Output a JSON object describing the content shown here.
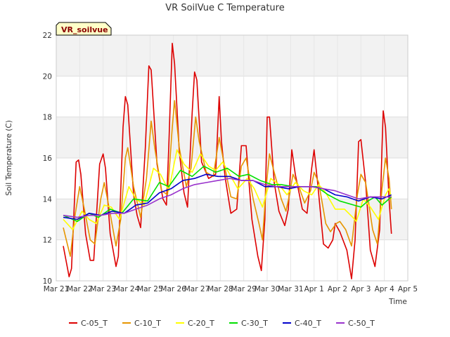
{
  "chart_data": {
    "type": "line",
    "title": "VR SoilVue C Temperature",
    "xlabel": "Time",
    "ylabel": "Soil Temperature (C)",
    "badge": "VR_soilvue",
    "ylim": [
      10,
      22
    ],
    "yticks": [
      10,
      12,
      14,
      16,
      18,
      20,
      22
    ],
    "xlim": [
      0,
      15
    ],
    "xticks": [
      {
        "x": 0,
        "label": "Mar 21"
      },
      {
        "x": 1,
        "label": "Mar 22"
      },
      {
        "x": 2,
        "label": "Mar 23"
      },
      {
        "x": 3,
        "label": "Mar 24"
      },
      {
        "x": 4,
        "label": "Mar 25"
      },
      {
        "x": 5,
        "label": "Mar 26"
      },
      {
        "x": 6,
        "label": "Mar 27"
      },
      {
        "x": 7,
        "label": "Mar 28"
      },
      {
        "x": 8,
        "label": "Mar 29"
      },
      {
        "x": 9,
        "label": "Mar 30"
      },
      {
        "x": 10,
        "label": "Mar 31"
      },
      {
        "x": 11,
        "label": "Apr 1"
      },
      {
        "x": 12,
        "label": "Apr 2"
      },
      {
        "x": 13,
        "label": "Apr 3"
      },
      {
        "x": 14,
        "label": "Apr 4"
      },
      {
        "x": 15,
        "label": "Apr 5"
      }
    ],
    "grid": true,
    "legend_position": "bottom",
    "x_note": "x values are days elapsed since Mar 21 00:00",
    "series": [
      {
        "name": "C-05_T",
        "color": "#dd0000",
        "points": [
          [
            0.3,
            11.7
          ],
          [
            0.55,
            10.2
          ],
          [
            0.65,
            10.6
          ],
          [
            0.85,
            15.8
          ],
          [
            0.95,
            15.9
          ],
          [
            1.05,
            15.2
          ],
          [
            1.25,
            12.3
          ],
          [
            1.45,
            11.0
          ],
          [
            1.6,
            11.0
          ],
          [
            1.85,
            15.7
          ],
          [
            2.0,
            16.2
          ],
          [
            2.1,
            15.5
          ],
          [
            2.3,
            12.3
          ],
          [
            2.55,
            10.7
          ],
          [
            2.65,
            11.2
          ],
          [
            2.85,
            17.5
          ],
          [
            2.95,
            19.0
          ],
          [
            3.05,
            18.6
          ],
          [
            3.3,
            14.2
          ],
          [
            3.45,
            13.2
          ],
          [
            3.6,
            12.6
          ],
          [
            3.8,
            16.5
          ],
          [
            3.95,
            20.5
          ],
          [
            4.05,
            20.3
          ],
          [
            4.3,
            15.7
          ],
          [
            4.55,
            14.0
          ],
          [
            4.7,
            13.7
          ],
          [
            4.8,
            16.5
          ],
          [
            4.95,
            21.6
          ],
          [
            5.05,
            20.6
          ],
          [
            5.25,
            16.3
          ],
          [
            5.45,
            14.3
          ],
          [
            5.6,
            13.6
          ],
          [
            5.8,
            18.2
          ],
          [
            5.9,
            20.2
          ],
          [
            6.0,
            19.8
          ],
          [
            6.2,
            15.8
          ],
          [
            6.5,
            15.0
          ],
          [
            6.8,
            15.2
          ],
          [
            6.95,
            19.0
          ],
          [
            7.05,
            16.8
          ],
          [
            7.2,
            15.1
          ],
          [
            7.45,
            13.3
          ],
          [
            7.7,
            13.5
          ],
          [
            7.9,
            16.6
          ],
          [
            8.1,
            16.6
          ],
          [
            8.35,
            13.0
          ],
          [
            8.6,
            11.2
          ],
          [
            8.75,
            10.5
          ],
          [
            8.9,
            13.0
          ],
          [
            9.0,
            18.0
          ],
          [
            9.1,
            18.0
          ],
          [
            9.3,
            14.8
          ],
          [
            9.5,
            13.4
          ],
          [
            9.75,
            12.7
          ],
          [
            9.9,
            13.5
          ],
          [
            10.05,
            16.4
          ],
          [
            10.2,
            15.2
          ],
          [
            10.5,
            13.5
          ],
          [
            10.7,
            13.3
          ],
          [
            10.9,
            15.5
          ],
          [
            11.0,
            16.4
          ],
          [
            11.15,
            14.8
          ],
          [
            11.4,
            11.8
          ],
          [
            11.6,
            11.6
          ],
          [
            11.8,
            12.0
          ],
          [
            11.9,
            12.8
          ],
          [
            12.1,
            12.4
          ],
          [
            12.4,
            11.5
          ],
          [
            12.6,
            10.1
          ],
          [
            12.75,
            12.0
          ],
          [
            12.9,
            16.8
          ],
          [
            13.0,
            16.9
          ],
          [
            13.2,
            14.8
          ],
          [
            13.4,
            11.5
          ],
          [
            13.6,
            10.7
          ],
          [
            13.8,
            12.5
          ],
          [
            13.9,
            16.5
          ],
          [
            13.95,
            18.3
          ],
          [
            14.05,
            17.5
          ],
          [
            14.2,
            14.0
          ],
          [
            14.3,
            12.3
          ]
        ]
      },
      {
        "name": "C-10_T",
        "color": "#e69500",
        "points": [
          [
            0.3,
            12.6
          ],
          [
            0.6,
            11.2
          ],
          [
            0.8,
            13.2
          ],
          [
            1.0,
            14.6
          ],
          [
            1.2,
            13.5
          ],
          [
            1.45,
            12.0
          ],
          [
            1.65,
            11.8
          ],
          [
            1.9,
            14.0
          ],
          [
            2.05,
            14.8
          ],
          [
            2.25,
            13.6
          ],
          [
            2.55,
            11.7
          ],
          [
            2.75,
            13.0
          ],
          [
            2.95,
            16.0
          ],
          [
            3.05,
            16.5
          ],
          [
            3.3,
            14.6
          ],
          [
            3.6,
            13.1
          ],
          [
            3.85,
            15.0
          ],
          [
            4.05,
            17.8
          ],
          [
            4.2,
            16.5
          ],
          [
            4.5,
            14.4
          ],
          [
            4.75,
            14.2
          ],
          [
            4.95,
            17.5
          ],
          [
            5.05,
            18.8
          ],
          [
            5.25,
            16.5
          ],
          [
            5.55,
            14.6
          ],
          [
            5.75,
            15.5
          ],
          [
            5.95,
            18.0
          ],
          [
            6.1,
            16.8
          ],
          [
            6.4,
            15.3
          ],
          [
            6.7,
            15.1
          ],
          [
            6.95,
            17.0
          ],
          [
            7.15,
            15.8
          ],
          [
            7.45,
            14.1
          ],
          [
            7.7,
            14.0
          ],
          [
            7.9,
            15.6
          ],
          [
            8.1,
            16.0
          ],
          [
            8.4,
            14.0
          ],
          [
            8.65,
            12.8
          ],
          [
            8.8,
            12.0
          ],
          [
            8.95,
            14.5
          ],
          [
            9.1,
            16.2
          ],
          [
            9.3,
            15.3
          ],
          [
            9.6,
            14.0
          ],
          [
            9.8,
            13.4
          ],
          [
            9.95,
            14.2
          ],
          [
            10.1,
            15.2
          ],
          [
            10.35,
            14.6
          ],
          [
            10.6,
            13.8
          ],
          [
            10.85,
            14.4
          ],
          [
            11.0,
            15.3
          ],
          [
            11.2,
            14.8
          ],
          [
            11.5,
            12.8
          ],
          [
            11.7,
            12.4
          ],
          [
            11.95,
            12.8
          ],
          [
            12.1,
            12.9
          ],
          [
            12.35,
            12.5
          ],
          [
            12.6,
            11.7
          ],
          [
            12.85,
            14.2
          ],
          [
            13.0,
            15.2
          ],
          [
            13.2,
            14.8
          ],
          [
            13.5,
            12.5
          ],
          [
            13.7,
            11.8
          ],
          [
            13.9,
            14.5
          ],
          [
            14.05,
            16.0
          ],
          [
            14.2,
            15.0
          ],
          [
            14.3,
            13.5
          ]
        ]
      },
      {
        "name": "C-20_T",
        "color": "#ffff00",
        "points": [
          [
            0.3,
            13.0
          ],
          [
            0.7,
            12.5
          ],
          [
            1.1,
            13.4
          ],
          [
            1.4,
            13.0
          ],
          [
            1.7,
            12.8
          ],
          [
            2.05,
            13.7
          ],
          [
            2.35,
            13.6
          ],
          [
            2.7,
            13.0
          ],
          [
            3.1,
            14.6
          ],
          [
            3.4,
            14.0
          ],
          [
            3.75,
            13.7
          ],
          [
            4.15,
            15.5
          ],
          [
            4.45,
            15.2
          ],
          [
            4.8,
            14.4
          ],
          [
            5.15,
            16.4
          ],
          [
            5.45,
            15.7
          ],
          [
            5.8,
            15.3
          ],
          [
            6.15,
            16.2
          ],
          [
            6.5,
            15.6
          ],
          [
            6.8,
            15.4
          ],
          [
            7.1,
            15.8
          ],
          [
            7.4,
            15.2
          ],
          [
            7.75,
            14.5
          ],
          [
            8.15,
            15.0
          ],
          [
            8.45,
            14.5
          ],
          [
            8.8,
            13.6
          ],
          [
            9.15,
            15.0
          ],
          [
            9.5,
            14.7
          ],
          [
            9.85,
            14.2
          ],
          [
            10.2,
            14.8
          ],
          [
            10.55,
            14.4
          ],
          [
            10.9,
            14.2
          ],
          [
            11.2,
            14.7
          ],
          [
            11.5,
            14.3
          ],
          [
            11.9,
            13.5
          ],
          [
            12.3,
            13.5
          ],
          [
            12.65,
            13.1
          ],
          [
            12.8,
            12.9
          ],
          [
            13.1,
            14.0
          ],
          [
            13.4,
            13.6
          ],
          [
            13.75,
            13.0
          ],
          [
            14.05,
            14.2
          ],
          [
            14.2,
            14.5
          ],
          [
            14.3,
            14.0
          ]
        ]
      },
      {
        "name": "C-30_T",
        "color": "#00e000",
        "points": [
          [
            0.3,
            13.2
          ],
          [
            0.9,
            12.9
          ],
          [
            1.4,
            13.3
          ],
          [
            1.8,
            13.1
          ],
          [
            2.3,
            13.5
          ],
          [
            2.8,
            13.3
          ],
          [
            3.3,
            14.0
          ],
          [
            3.9,
            13.9
          ],
          [
            4.4,
            14.8
          ],
          [
            4.8,
            14.6
          ],
          [
            5.3,
            15.4
          ],
          [
            5.8,
            15.1
          ],
          [
            6.3,
            15.6
          ],
          [
            6.8,
            15.3
          ],
          [
            7.3,
            15.5
          ],
          [
            7.8,
            15.1
          ],
          [
            8.2,
            15.2
          ],
          [
            8.7,
            14.9
          ],
          [
            9.2,
            14.7
          ],
          [
            9.6,
            14.7
          ],
          [
            10.1,
            14.6
          ],
          [
            10.6,
            14.6
          ],
          [
            11.1,
            14.6
          ],
          [
            11.6,
            14.2
          ],
          [
            12.1,
            13.9
          ],
          [
            12.7,
            13.7
          ],
          [
            13.0,
            13.6
          ],
          [
            13.3,
            13.9
          ],
          [
            13.6,
            14.1
          ],
          [
            13.9,
            13.7
          ],
          [
            14.3,
            14.1
          ]
        ]
      },
      {
        "name": "C-40_T",
        "color": "#0000cc",
        "points": [
          [
            0.3,
            13.1
          ],
          [
            0.9,
            13.0
          ],
          [
            1.4,
            13.3
          ],
          [
            1.9,
            13.2
          ],
          [
            2.4,
            13.4
          ],
          [
            2.9,
            13.3
          ],
          [
            3.4,
            13.7
          ],
          [
            3.9,
            13.8
          ],
          [
            4.4,
            14.3
          ],
          [
            4.9,
            14.5
          ],
          [
            5.4,
            14.9
          ],
          [
            5.9,
            15.0
          ],
          [
            6.4,
            15.2
          ],
          [
            6.9,
            15.1
          ],
          [
            7.4,
            15.1
          ],
          [
            7.9,
            14.9
          ],
          [
            8.4,
            14.9
          ],
          [
            8.9,
            14.6
          ],
          [
            9.4,
            14.6
          ],
          [
            9.9,
            14.5
          ],
          [
            10.4,
            14.6
          ],
          [
            10.9,
            14.6
          ],
          [
            11.4,
            14.5
          ],
          [
            11.9,
            14.2
          ],
          [
            12.4,
            14.1
          ],
          [
            12.9,
            13.9
          ],
          [
            13.4,
            14.1
          ],
          [
            13.9,
            14.0
          ],
          [
            14.3,
            14.2
          ]
        ]
      },
      {
        "name": "C-50_T",
        "color": "#9932cc",
        "points": [
          [
            0.3,
            13.2
          ],
          [
            0.9,
            13.1
          ],
          [
            1.4,
            13.2
          ],
          [
            1.9,
            13.2
          ],
          [
            2.4,
            13.3
          ],
          [
            2.9,
            13.3
          ],
          [
            3.4,
            13.5
          ],
          [
            3.9,
            13.7
          ],
          [
            4.4,
            14.0
          ],
          [
            4.9,
            14.2
          ],
          [
            5.4,
            14.5
          ],
          [
            5.9,
            14.7
          ],
          [
            6.4,
            14.8
          ],
          [
            6.9,
            14.9
          ],
          [
            7.4,
            15.0
          ],
          [
            7.9,
            14.9
          ],
          [
            8.4,
            14.9
          ],
          [
            8.9,
            14.7
          ],
          [
            9.4,
            14.6
          ],
          [
            9.9,
            14.6
          ],
          [
            10.4,
            14.6
          ],
          [
            10.9,
            14.6
          ],
          [
            11.4,
            14.5
          ],
          [
            11.9,
            14.4
          ],
          [
            12.4,
            14.2
          ],
          [
            12.9,
            14.0
          ],
          [
            13.4,
            14.1
          ],
          [
            13.9,
            14.1
          ],
          [
            14.3,
            14.1
          ]
        ]
      }
    ]
  }
}
